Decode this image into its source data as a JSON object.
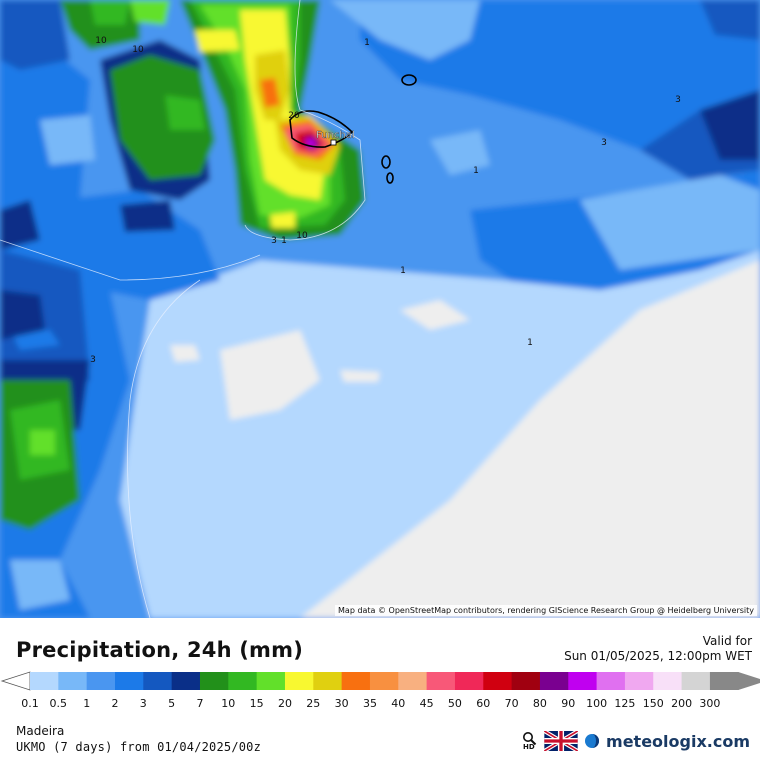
{
  "map": {
    "attribution": "Map data © OpenStreetMap contributors, rendering GIScience Research Group @ Heidelberg University",
    "city_label": "Funchal",
    "contour_labels": [
      "10",
      "10",
      "1",
      "3",
      "3",
      "1",
      "1",
      "20",
      "3",
      "10",
      "1",
      "1",
      "3"
    ]
  },
  "header": {
    "title": "Precipitation, 24h (mm)",
    "valid_label": "Valid for",
    "valid_time": "Sun 01/05/2025, 12:00pm WET"
  },
  "legend": {
    "labels": [
      "0.1",
      "0.5",
      "1",
      "2",
      "3",
      "5",
      "7",
      "10",
      "15",
      "20",
      "25",
      "30",
      "35",
      "40",
      "45",
      "50",
      "60",
      "70",
      "80",
      "90",
      "100",
      "125",
      "150",
      "200",
      "300"
    ],
    "colors": [
      "#b4d8fe",
      "#78b8f8",
      "#4a96f0",
      "#1c7ae8",
      "#1458c0",
      "#0a2f88",
      "#22901a",
      "#32b822",
      "#62e02a",
      "#f8f830",
      "#e0d010",
      "#f87010",
      "#f89040",
      "#f8b080",
      "#f85878",
      "#f02858",
      "#d00010",
      "#a00010",
      "#7a0090",
      "#c000f0",
      "#e070f0",
      "#f0a8f0",
      "#f8e0f8",
      "#d4d4d4",
      "#888888"
    ],
    "low_arrow_color": "#ffffff",
    "high_arrow_color": "#888888"
  },
  "footer": {
    "region": "Madeira",
    "model": "UKMO (7 days) from 01/04/2025/00z",
    "hd_label": "HD",
    "brand": "meteologix.com"
  }
}
